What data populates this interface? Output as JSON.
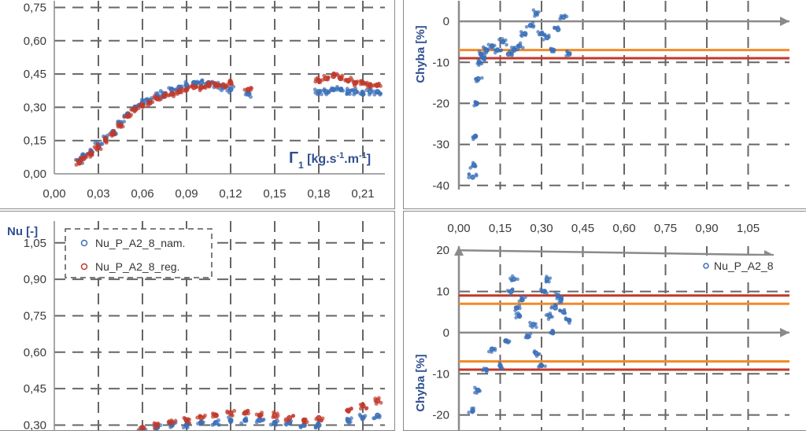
{
  "chart_data": [
    {
      "type": "scatter",
      "xlabel": "Γ1 [kg.s-1.m-1]",
      "xlabel_main": "Γ",
      "xlabel_sub": "1",
      "xlabel_rest": " [kg.s",
      "xlabel_sup1": "-1",
      "xlabel_mid": ".m",
      "xlabel_sup2": "-1",
      "xlabel_end": "]",
      "xlim": [
        0,
        0.225
      ],
      "ylim": [
        0,
        0.78
      ],
      "xticks": [
        "0,00",
        "0,03",
        "0,06",
        "0,09",
        "0,12",
        "0,15",
        "0,18",
        "0,21"
      ],
      "yticks": [
        "0,00",
        "0,15",
        "0,30",
        "0,45",
        "0,60",
        "0,75"
      ],
      "series": [
        {
          "color": "#3a6fb8",
          "x": [
            0.017,
            0.02,
            0.025,
            0.03,
            0.035,
            0.04,
            0.045,
            0.05,
            0.055,
            0.06,
            0.065,
            0.07,
            0.075,
            0.08,
            0.085,
            0.09,
            0.095,
            0.1,
            0.105,
            0.11,
            0.115,
            0.12,
            0.132,
            0.18,
            0.185,
            0.19,
            0.195,
            0.2,
            0.205,
            0.21,
            0.215,
            0.22
          ],
          "y": [
            0.06,
            0.08,
            0.1,
            0.13,
            0.16,
            0.19,
            0.23,
            0.27,
            0.3,
            0.32,
            0.33,
            0.35,
            0.36,
            0.38,
            0.39,
            0.4,
            0.41,
            0.41,
            0.41,
            0.4,
            0.39,
            0.38,
            0.36,
            0.37,
            0.37,
            0.38,
            0.38,
            0.37,
            0.37,
            0.36,
            0.37,
            0.37
          ]
        },
        {
          "color": "#c0392b",
          "x": [
            0.017,
            0.02,
            0.025,
            0.03,
            0.035,
            0.04,
            0.045,
            0.05,
            0.055,
            0.06,
            0.065,
            0.07,
            0.075,
            0.08,
            0.085,
            0.09,
            0.095,
            0.1,
            0.105,
            0.11,
            0.115,
            0.12,
            0.132,
            0.18,
            0.185,
            0.19,
            0.195,
            0.2,
            0.205,
            0.21,
            0.215,
            0.22
          ],
          "y": [
            0.05,
            0.07,
            0.09,
            0.12,
            0.15,
            0.18,
            0.22,
            0.26,
            0.29,
            0.31,
            0.32,
            0.34,
            0.35,
            0.36,
            0.37,
            0.38,
            0.39,
            0.39,
            0.4,
            0.4,
            0.4,
            0.41,
            0.38,
            0.42,
            0.43,
            0.44,
            0.43,
            0.42,
            0.41,
            0.41,
            0.4,
            0.4
          ]
        }
      ]
    },
    {
      "type": "scatter",
      "ylabel": "Chyba [%]",
      "xlim": [
        0,
        1.2
      ],
      "ylim": [
        -41,
        5
      ],
      "yticks": [
        "0",
        "-10",
        "-20",
        "-30",
        "-40"
      ],
      "hlines": [
        {
          "y": -7,
          "color": "#f08c2a"
        },
        {
          "y": -9,
          "color": "#c0392b"
        }
      ],
      "series": [
        {
          "color": "#3a6fb8",
          "x": [
            0.05,
            0.055,
            0.06,
            0.065,
            0.07,
            0.075,
            0.08,
            0.09,
            0.1,
            0.12,
            0.14,
            0.16,
            0.18,
            0.2,
            0.22,
            0.24,
            0.26,
            0.28,
            0.3,
            0.32,
            0.34,
            0.36,
            0.38,
            0.4
          ],
          "y": [
            -38,
            -35,
            -28,
            -20,
            -14,
            -10,
            -8,
            -9,
            -7,
            -6,
            -7,
            -5,
            -8,
            -7,
            -6,
            -3,
            -1,
            2,
            -3,
            -4,
            -7,
            -2,
            1,
            -8
          ]
        }
      ]
    },
    {
      "type": "scatter",
      "ylabel": "Nu [-]",
      "xlim": [
        0,
        0.225
      ],
      "ylim": [
        0.24,
        1.14
      ],
      "yticks": [
        "1,05",
        "0,90",
        "0,75",
        "0,60",
        "0,45",
        "0,30"
      ],
      "legend_placement": "top-left",
      "series": [
        {
          "name": "Nu_P_A2_8_nam.",
          "color": "#3a6fb8",
          "x": [
            0.06,
            0.07,
            0.08,
            0.09,
            0.1,
            0.11,
            0.12,
            0.13,
            0.14,
            0.15,
            0.16,
            0.17,
            0.18,
            0.2,
            0.21,
            0.22
          ],
          "y": [
            0.28,
            0.29,
            0.3,
            0.3,
            0.31,
            0.31,
            0.32,
            0.32,
            0.32,
            0.31,
            0.31,
            0.3,
            0.3,
            0.32,
            0.33,
            0.34
          ]
        },
        {
          "name": "Nu_P_A2_8_reg.",
          "color": "#c0392b",
          "x": [
            0.06,
            0.07,
            0.08,
            0.09,
            0.1,
            0.11,
            0.12,
            0.13,
            0.14,
            0.15,
            0.16,
            0.17,
            0.18,
            0.2,
            0.21,
            0.22
          ],
          "y": [
            0.29,
            0.3,
            0.31,
            0.32,
            0.33,
            0.34,
            0.35,
            0.35,
            0.34,
            0.34,
            0.33,
            0.32,
            0.33,
            0.36,
            0.38,
            0.4
          ]
        }
      ]
    },
    {
      "type": "scatter",
      "ylabel": "Chyba [%]",
      "xlim": [
        0,
        1.2
      ],
      "ylim": [
        -26,
        21
      ],
      "xticks": [
        "0,00",
        "0,15",
        "0,30",
        "0,45",
        "0,60",
        "0,75",
        "0,90",
        "1,05"
      ],
      "yticks": [
        "20",
        "10",
        "0",
        "-10",
        "-20"
      ],
      "hlines": [
        {
          "y": 9,
          "color": "#c0392b"
        },
        {
          "y": 7,
          "color": "#f08c2a"
        },
        {
          "y": -7,
          "color": "#f08c2a"
        },
        {
          "y": -9,
          "color": "#c0392b"
        }
      ],
      "legend_placement": "top-right",
      "series": [
        {
          "name": "Nu_P_A2_8",
          "color": "#3a6fb8",
          "x": [
            0.05,
            0.07,
            0.1,
            0.12,
            0.15,
            0.17,
            0.19,
            0.2,
            0.21,
            0.22,
            0.23,
            0.25,
            0.27,
            0.28,
            0.3,
            0.31,
            0.32,
            0.33,
            0.34,
            0.35,
            0.36,
            0.37,
            0.38,
            0.4
          ],
          "y": [
            -19,
            -14,
            -9,
            -4,
            -8,
            -2,
            10,
            13,
            6,
            4,
            8,
            -1,
            2,
            -5,
            -8,
            10,
            13,
            4,
            0,
            6,
            9,
            8,
            5,
            3
          ]
        }
      ]
    }
  ]
}
